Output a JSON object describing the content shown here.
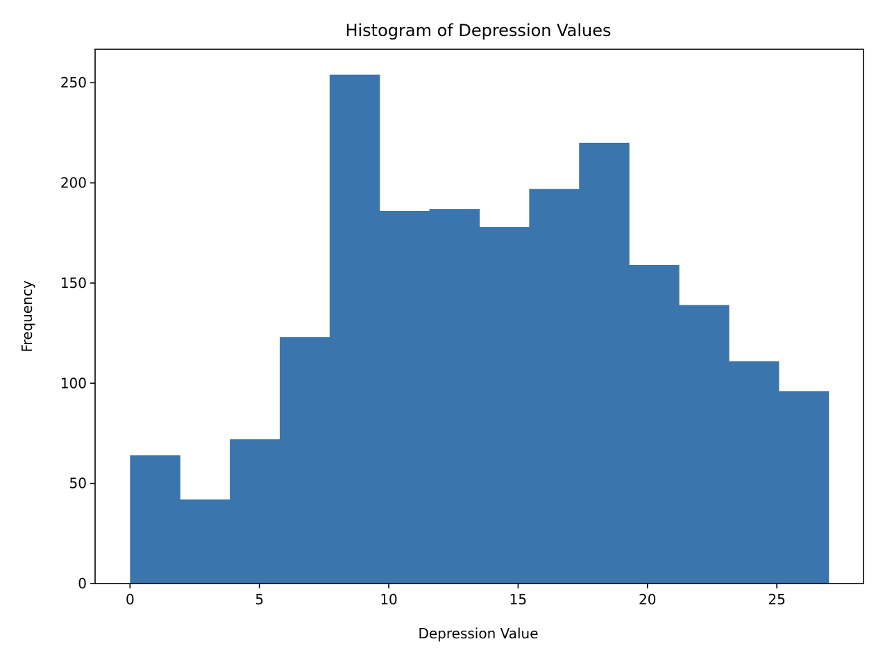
{
  "chart_data": {
    "type": "bar",
    "title": "Histogram of Depression Values",
    "xlabel": "Depression Value",
    "ylabel": "Frequency",
    "bin_edges": [
      0,
      1.929,
      3.857,
      5.786,
      7.714,
      9.643,
      11.571,
      13.5,
      15.429,
      17.357,
      19.286,
      21.214,
      23.143,
      25.071,
      27
    ],
    "values": [
      64,
      42,
      72,
      123,
      254,
      186,
      187,
      178,
      197,
      220,
      159,
      139,
      111,
      96
    ],
    "xlim": [
      -1.35,
      28.35
    ],
    "ylim": [
      0,
      266.7
    ],
    "xticks": [
      0,
      5,
      10,
      15,
      20,
      25
    ],
    "yticks": [
      0,
      50,
      100,
      150,
      200,
      250
    ],
    "bar_color": "#3a75ae",
    "grid": false,
    "legend": false
  }
}
